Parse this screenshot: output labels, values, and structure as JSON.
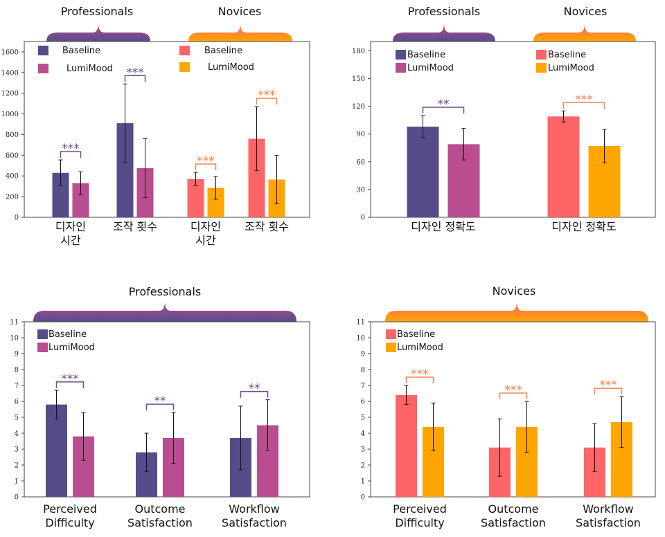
{
  "colors": {
    "pro_base": "#574c8a",
    "pro_lumi": "#b94d8f",
    "nov_base": "#ff6467",
    "nov_lumi": "#ffa500",
    "pro_brace_top": "#b94d8f",
    "pro_brace_bottom": "#574c8a",
    "nov_brace_top": "#ff6467",
    "nov_brace_bottom": "#ffa500",
    "pro_sig": "#6a4d8e",
    "nov_sig": "#f08550"
  },
  "chart_data": [
    {
      "type": "bar",
      "title": "",
      "groups": [
        "Professionals",
        "Novices"
      ],
      "categories": [
        "디자인\n시간",
        "조작 횟수",
        "디자인\n시간",
        "조작 횟수"
      ],
      "category_group": [
        "Professionals",
        "Professionals",
        "Novices",
        "Novices"
      ],
      "series": [
        {
          "name": "Baseline",
          "values": [
            430,
            910,
            370,
            760
          ],
          "errors": [
            125,
            380,
            65,
            310
          ]
        },
        {
          "name": "LumiMood",
          "values": [
            330,
            475,
            285,
            365
          ],
          "errors": [
            110,
            285,
            110,
            235
          ]
        }
      ],
      "significance": [
        "***",
        "***",
        "***",
        "***"
      ],
      "legend": [
        {
          "label": "Baseline",
          "group": "Professionals"
        },
        {
          "label": "LumiMood",
          "group": "Professionals"
        },
        {
          "label": "Baseline",
          "group": "Novices"
        },
        {
          "label": "LumiMood",
          "group": "Novices"
        }
      ],
      "legend_placement": "top-left",
      "ylim": [
        0,
        1700
      ],
      "yticks": [
        0,
        200,
        400,
        600,
        800,
        1000,
        1200,
        1400,
        1600
      ]
    },
    {
      "type": "bar",
      "title": "",
      "groups": [
        "Professionals",
        "Novices"
      ],
      "categories": [
        "디자인 정확도",
        "디자인 정확도"
      ],
      "category_group": [
        "Professionals",
        "Novices"
      ],
      "series": [
        {
          "name": "Baseline",
          "values": [
            98,
            109
          ],
          "errors": [
            12,
            6
          ]
        },
        {
          "name": "LumiMood",
          "values": [
            79,
            77
          ],
          "errors": [
            17,
            18
          ]
        }
      ],
      "significance": [
        "**",
        "***"
      ],
      "legend": [
        {
          "label": "Baseline",
          "group": "Professionals"
        },
        {
          "label": "LumiMood",
          "group": "Professionals"
        },
        {
          "label": "Baseline",
          "group": "Novices"
        },
        {
          "label": "LumiMood",
          "group": "Novices"
        }
      ],
      "legend_placement": "top-left",
      "ylim": [
        0,
        190
      ],
      "yticks": [
        0,
        30,
        60,
        90,
        120,
        150,
        180
      ]
    },
    {
      "type": "bar",
      "title": "Professionals",
      "groups": [
        "Professionals"
      ],
      "categories": [
        "Perceived\nDifficulty",
        "Outcome\nSatisfaction",
        "Workflow\nSatisfaction"
      ],
      "category_group": [
        "Professionals",
        "Professionals",
        "Professionals"
      ],
      "series": [
        {
          "name": "Baseline",
          "values": [
            5.8,
            2.8,
            3.7
          ],
          "errors": [
            0.9,
            1.2,
            2.0
          ]
        },
        {
          "name": "LumiMood",
          "values": [
            3.8,
            3.7,
            4.5
          ],
          "errors": [
            1.5,
            1.6,
            1.6
          ]
        }
      ],
      "significance": [
        "***",
        "**",
        "**"
      ],
      "legend": [
        {
          "label": "Baseline",
          "group": "Professionals"
        },
        {
          "label": "LumiMood",
          "group": "Professionals"
        }
      ],
      "legend_placement": "top-left",
      "ylim": [
        0,
        11
      ],
      "yticks": [
        0,
        1,
        2,
        3,
        4,
        5,
        6,
        7,
        8,
        9,
        10,
        11
      ]
    },
    {
      "type": "bar",
      "title": "Novices",
      "groups": [
        "Novices"
      ],
      "categories": [
        "Perceived\nDifficulty",
        "Outcome\nSatisfaction",
        "Workflow\nSatisfaction"
      ],
      "category_group": [
        "Novices",
        "Novices",
        "Novices"
      ],
      "series": [
        {
          "name": "Baseline",
          "values": [
            6.4,
            3.1,
            3.1
          ],
          "errors": [
            0.6,
            1.8,
            1.5
          ]
        },
        {
          "name": "LumiMood",
          "values": [
            4.4,
            4.4,
            4.7
          ],
          "errors": [
            1.5,
            1.6,
            1.6
          ]
        }
      ],
      "significance": [
        "***",
        "***",
        "***"
      ],
      "legend": [
        {
          "label": "Baseline",
          "group": "Novices"
        },
        {
          "label": "LumiMood",
          "group": "Novices"
        }
      ],
      "legend_placement": "top-left",
      "ylim": [
        0,
        11
      ],
      "yticks": [
        0,
        1,
        2,
        3,
        4,
        5,
        6,
        7,
        8,
        9,
        10,
        11
      ]
    }
  ]
}
